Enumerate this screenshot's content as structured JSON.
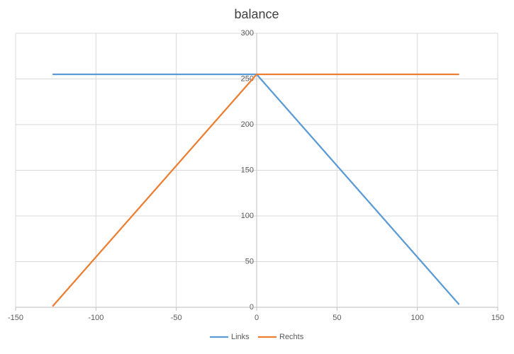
{
  "chart_data": {
    "type": "scatter-line",
    "title": "balance",
    "x": [
      -127,
      0,
      126
    ],
    "series": [
      {
        "name": "Links",
        "color": "#5b9bd5",
        "values": [
          255,
          255,
          3
        ]
      },
      {
        "name": "Rechts",
        "color": "#ed7d31",
        "values": [
          1,
          255,
          255
        ]
      }
    ],
    "xlim": [
      -150,
      150
    ],
    "xticks": [
      -150,
      -100,
      -50,
      0,
      50,
      100,
      150
    ],
    "ylim": [
      0,
      300
    ],
    "yticks": [
      0,
      50,
      100,
      150,
      200,
      250,
      300
    ],
    "grid": true,
    "legend": "bottom"
  }
}
